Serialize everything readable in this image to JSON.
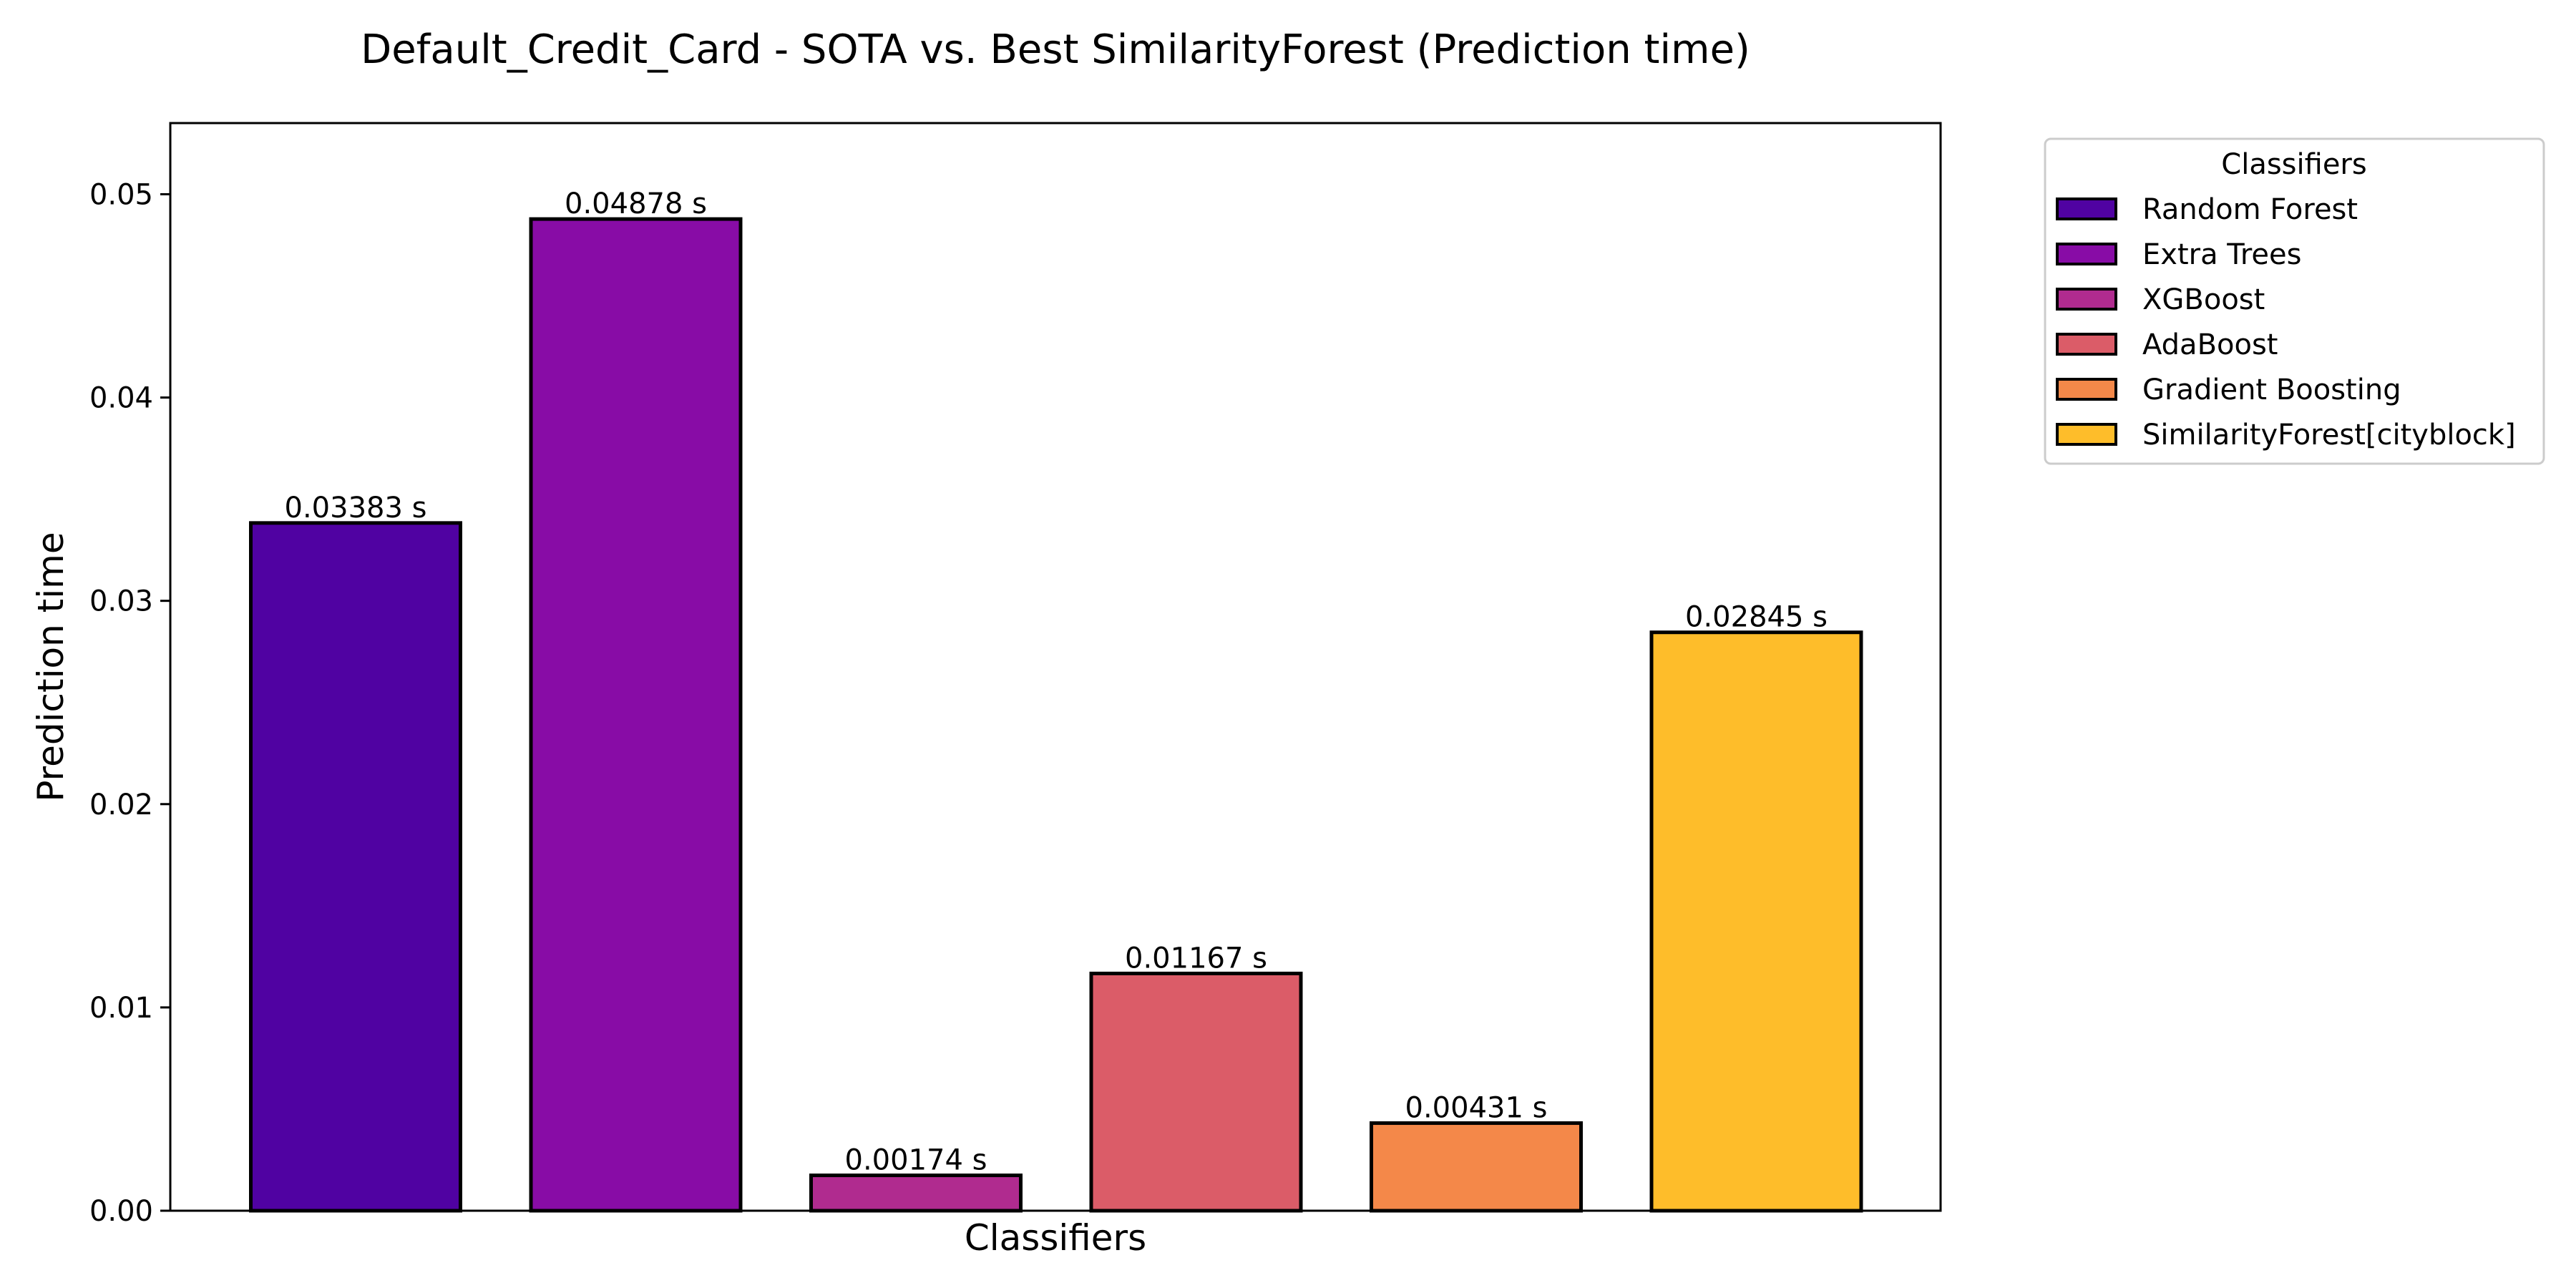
{
  "chart_data": {
    "type": "bar",
    "title": "Default_Credit_Card - SOTA vs. Best SimilarityForest (Prediction time)",
    "xlabel": "Classifiers",
    "ylabel": "Prediction time",
    "ylim": [
      0,
      0.0535
    ],
    "yticks": [
      0.0,
      0.01,
      0.02,
      0.03,
      0.04,
      0.05
    ],
    "ytick_labels": [
      "0.00",
      "0.01",
      "0.02",
      "0.03",
      "0.04",
      "0.05"
    ],
    "grid": false,
    "legend": {
      "title": "Classifiers",
      "position": "outside-top-right"
    },
    "bars": [
      {
        "name": "Random Forest",
        "value": 0.03383,
        "label": "0.03383 s",
        "color": "#5002a2"
      },
      {
        "name": "Extra Trees",
        "value": 0.04878,
        "label": "0.04878 s",
        "color": "#880ca6"
      },
      {
        "name": "XGBoost",
        "value": 0.00174,
        "label": "0.00174 s",
        "color": "#b02b8f"
      },
      {
        "name": "AdaBoost",
        "value": 0.01167,
        "label": "0.01167 s",
        "color": "#db5c68"
      },
      {
        "name": "Gradient Boosting",
        "value": 0.00431,
        "label": "0.00431 s",
        "color": "#f48849"
      },
      {
        "name": "SimilarityForest[cityblock]",
        "value": 0.02845,
        "label": "0.02845 s",
        "color": "#febd2a"
      }
    ]
  }
}
